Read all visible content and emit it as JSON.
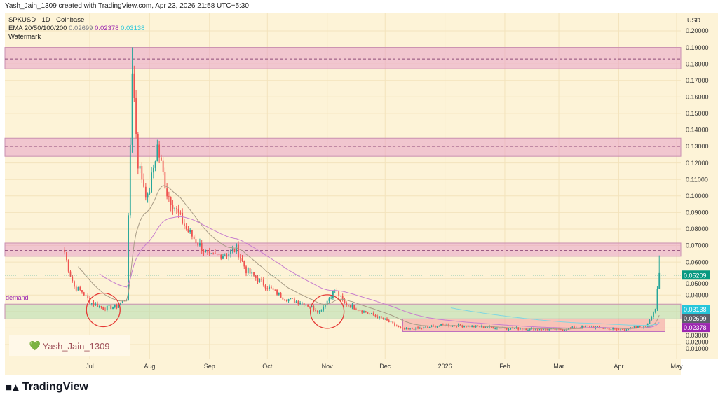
{
  "header": {
    "credit": "Yash_Jain_1309 created with TradingView.com, Apr 23, 2026 21:58 UTC+5:30"
  },
  "legend": {
    "symbol": "SPKUSD · 1D · Coinbase",
    "ema_label": "EMA 20/50/100/200",
    "ema_values": [
      "0.02699",
      "0.02378",
      "0.03138"
    ],
    "ema_colors": [
      "#787b86",
      "#9c27b0",
      "#26c6da"
    ],
    "watermark_label": "Watermark"
  },
  "watermark": {
    "text": "Yash_Jain_1309",
    "icon": "green-heart-icon"
  },
  "brand": {
    "name": "TradingView",
    "icon": "tradingview-logo-icon"
  },
  "colors": {
    "up": "#26a69a",
    "down": "#ef5350",
    "background": "#fdf3d7"
  },
  "chart_data": {
    "type": "candlestick",
    "currency_label": "USD",
    "ylim": [
      0.005,
      0.205
    ],
    "y_ticks": [
      "0.20000",
      "0.19000",
      "0.18000",
      "0.17000",
      "0.16000",
      "0.15000",
      "0.14000",
      "0.13000",
      "0.12000",
      "0.11000",
      "0.10000",
      "0.09000",
      "0.08000",
      "0.07000",
      "0.06000",
      "0.05000",
      "0.04000",
      "0.03000",
      "0.02000",
      "0.01000"
    ],
    "x_ticks": [
      {
        "label": "Jul",
        "date": "2025-07-01"
      },
      {
        "label": "Aug",
        "date": "2025-08-01"
      },
      {
        "label": "Sep",
        "date": "2025-09-01"
      },
      {
        "label": "Oct",
        "date": "2025-10-01"
      },
      {
        "label": "Nov",
        "date": "2025-11-01"
      },
      {
        "label": "Dec",
        "date": "2025-12-01"
      },
      {
        "label": "2026",
        "date": "2026-01-01"
      },
      {
        "label": "Feb",
        "date": "2026-02-01"
      },
      {
        "label": "Mar",
        "date": "2026-03-01"
      },
      {
        "label": "Apr",
        "date": "2026-04-01"
      },
      {
        "label": "May",
        "date": "2026-05-01"
      }
    ],
    "xlim": [
      "2025-05-06",
      "2026-05-22"
    ],
    "price_path": [
      [
        "2025-06-18",
        0.066
      ],
      [
        "2025-06-20",
        0.056
      ],
      [
        "2025-06-23",
        0.045
      ],
      [
        "2025-06-27",
        0.042
      ],
      [
        "2025-07-01",
        0.036
      ],
      [
        "2025-07-08",
        0.032
      ],
      [
        "2025-07-15",
        0.033
      ],
      [
        "2025-07-20",
        0.038
      ],
      [
        "2025-07-21",
        0.085
      ],
      [
        "2025-07-23",
        0.178
      ],
      [
        "2025-07-26",
        0.12
      ],
      [
        "2025-07-31",
        0.098
      ],
      [
        "2025-08-05",
        0.13
      ],
      [
        "2025-08-10",
        0.102
      ],
      [
        "2025-08-20",
        0.08
      ],
      [
        "2025-09-01",
        0.063
      ],
      [
        "2025-09-10",
        0.065
      ],
      [
        "2025-09-15",
        0.068
      ],
      [
        "2025-09-20",
        0.055
      ],
      [
        "2025-10-01",
        0.045
      ],
      [
        "2025-10-10",
        0.038
      ],
      [
        "2025-10-20",
        0.035
      ],
      [
        "2025-10-28",
        0.03
      ],
      [
        "2025-11-05",
        0.043
      ],
      [
        "2025-11-10",
        0.035
      ],
      [
        "2025-11-20",
        0.03
      ],
      [
        "2025-12-01",
        0.025
      ],
      [
        "2025-12-10",
        0.019
      ],
      [
        "2025-12-20",
        0.02
      ],
      [
        "2026-01-01",
        0.022
      ],
      [
        "2026-01-15",
        0.021
      ],
      [
        "2026-02-01",
        0.02
      ],
      [
        "2026-03-01",
        0.019
      ],
      [
        "2026-03-15",
        0.021
      ],
      [
        "2026-04-01",
        0.019
      ],
      [
        "2026-04-15",
        0.021
      ],
      [
        "2026-04-20",
        0.032
      ],
      [
        "2026-04-22",
        0.052
      ]
    ],
    "spikes": [
      {
        "date": "2025-07-23",
        "high": 0.19
      },
      {
        "date": "2025-08-05",
        "high": 0.134
      },
      {
        "date": "2026-04-22",
        "high": 0.064
      }
    ],
    "last_price": "0.05209",
    "price_tags": [
      {
        "value": "0.05209",
        "price": 0.05209,
        "color": "#089981"
      },
      {
        "value": "0.03138",
        "price": 0.03138,
        "color": "#26c6da"
      },
      {
        "value": "0.02699",
        "price": 0.02699,
        "color": "#5d606b"
      },
      {
        "value": "0.02378",
        "price": 0.02378,
        "color": "#9c27b0"
      }
    ],
    "zones": [
      {
        "from": 0.177,
        "to": 0.19,
        "color": "#e8a0c8",
        "mid": 0.183
      },
      {
        "from": 0.124,
        "to": 0.135,
        "color": "#e8a0c8",
        "mid": 0.13
      },
      {
        "from": 0.0635,
        "to": 0.0715,
        "color": "#e8a0c8",
        "mid": 0.067
      },
      {
        "from": 0.0255,
        "to": 0.0345,
        "color": "#b5dcae",
        "mid": 0.031,
        "label": "demand"
      }
    ],
    "box": {
      "start": "2025-12-10",
      "end": "2026-04-25",
      "from": 0.018,
      "to": 0.0255,
      "color": "#f5a3a3"
    },
    "circles": [
      {
        "date": "2025-07-08",
        "price": 0.031
      },
      {
        "date": "2025-11-01",
        "price": 0.03
      }
    ]
  }
}
